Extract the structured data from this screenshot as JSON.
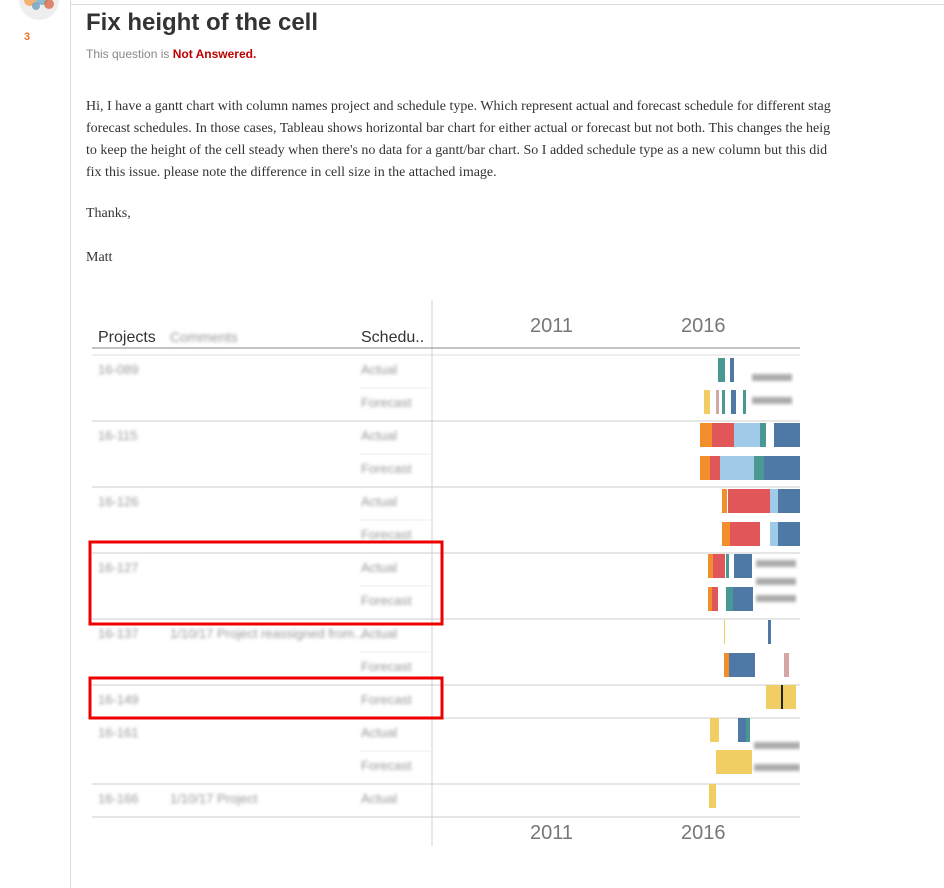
{
  "question": {
    "title": "Fix height of the cell",
    "status_prefix": "This question is",
    "status_value": "Not Answered.",
    "score": "3",
    "body_lines": [
      "Hi, I have a gantt chart with column names project and schedule type. Which represent actual and forecast schedule for different stag",
      "forecast schedules. In those cases, Tableau shows horizontal bar chart for either actual or forecast but not both. This changes the heig",
      "to keep the height of the cell steady when there's no data for a gantt/bar chart. So I added schedule type as a new column but this did",
      "fix this issue. please note the difference in cell size in the attached image."
    ],
    "thanks": "Thanks,",
    "signature": "Matt"
  },
  "colors": {
    "not_answered": "#c00000",
    "score": "#e8742b",
    "highlight_box": "#ee0000",
    "bar_orange": "#f28e2b",
    "bar_red": "#e15759",
    "bar_lightblue": "#a0cbe8",
    "bar_teal": "#499894",
    "bar_blue": "#4e79a7",
    "bar_yellow": "#f1ce63",
    "bar_pink": "#d4a6a6"
  },
  "chart": {
    "header_projects": "Projects",
    "header_comments": "Comments",
    "header_schedule": "Schedu..",
    "axis_years": [
      "2011",
      "2016"
    ],
    "rows": [
      {
        "project": "16-089",
        "comment": "",
        "types": [
          "Actual",
          "Forecast"
        ]
      },
      {
        "project": "16-115",
        "comment": "",
        "types": [
          "Actual",
          "Forecast"
        ]
      },
      {
        "project": "16-126",
        "comment": "",
        "types": [
          "Actual",
          "Forecast"
        ]
      },
      {
        "project": "16-127",
        "comment": "",
        "types": [
          "Actual",
          "Forecast"
        ]
      },
      {
        "project": "16-137",
        "comment": "1/10/17 Project reassigned from...",
        "types": [
          "Actual",
          "Forecast"
        ]
      },
      {
        "project": "16-149",
        "comment": "",
        "types": [
          "Forecast"
        ]
      },
      {
        "project": "16-161",
        "comment": "",
        "types": [
          "Actual",
          "Forecast"
        ]
      },
      {
        "project": "16-166",
        "comment": "1/10/17 Project",
        "types": [
          "Actual"
        ]
      }
    ]
  }
}
